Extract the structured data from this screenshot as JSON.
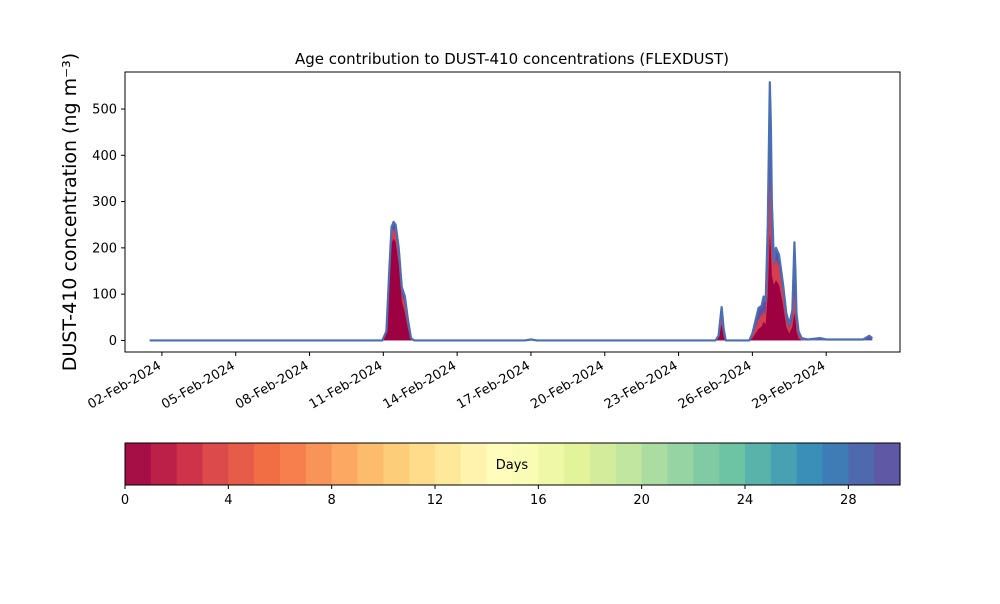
{
  "chart_data": {
    "type": "area",
    "title": "Age contribution to DUST-410 concentrations (FLEXDUST)",
    "ylabel": "DUST-410 concentration (ng m⁻³)",
    "xlabel": "",
    "ylim": [
      -25,
      580
    ],
    "xlim": [
      "2024-01-31T12:00",
      "2024-03-03T00:00"
    ],
    "yticks": [
      0,
      100,
      200,
      300,
      400,
      500
    ],
    "xtick_dates": [
      "2024-02-02",
      "2024-02-05",
      "2024-02-08",
      "2024-02-11",
      "2024-02-14",
      "2024-02-17",
      "2024-02-20",
      "2024-02-23",
      "2024-02-26",
      "2024-02-29"
    ],
    "xtick_labels": [
      "02-Feb-2024",
      "05-Feb-2024",
      "08-Feb-2024",
      "11-Feb-2024",
      "14-Feb-2024",
      "17-Feb-2024",
      "20-Feb-2024",
      "23-Feb-2024",
      "26-Feb-2024",
      "29-Feb-2024"
    ],
    "grid": false,
    "series": [
      {
        "color": "#5e4fa2",
        "points": [
          [
            "2024-02-01T12:00",
            0
          ],
          [
            "2024-02-10T23:00",
            0
          ],
          [
            "2024-02-11T03:00",
            20
          ],
          [
            "2024-02-11T06:00",
            160
          ],
          [
            "2024-02-11T08:00",
            245
          ],
          [
            "2024-02-11T10:00",
            256
          ],
          [
            "2024-02-11T12:00",
            250
          ],
          [
            "2024-02-11T15:00",
            200
          ],
          [
            "2024-02-11T18:00",
            115
          ],
          [
            "2024-02-11T21:00",
            95
          ],
          [
            "2024-02-12T00:00",
            45
          ],
          [
            "2024-02-12T03:00",
            5
          ],
          [
            "2024-02-12T06:00",
            0
          ],
          [
            "2024-02-16T18:00",
            0
          ],
          [
            "2024-02-17T00:00",
            2
          ],
          [
            "2024-02-17T06:00",
            0
          ],
          [
            "2024-02-24T12:00",
            0
          ],
          [
            "2024-02-24T15:00",
            10
          ],
          [
            "2024-02-24T18:00",
            72
          ],
          [
            "2024-02-24T20:00",
            25
          ],
          [
            "2024-02-24T22:00",
            0
          ],
          [
            "2024-02-25T21:00",
            0
          ],
          [
            "2024-02-26T00:00",
            15
          ],
          [
            "2024-02-26T06:00",
            70
          ],
          [
            "2024-02-26T09:00",
            75
          ],
          [
            "2024-02-26T11:00",
            95
          ],
          [
            "2024-02-26T13:00",
            85
          ],
          [
            "2024-02-26T15:00",
            250
          ],
          [
            "2024-02-26T17:00",
            558
          ],
          [
            "2024-02-26T18:00",
            470
          ],
          [
            "2024-02-26T19:00",
            300
          ],
          [
            "2024-02-26T21:00",
            170
          ],
          [
            "2024-02-26T23:00",
            200
          ],
          [
            "2024-02-27T02:00",
            185
          ],
          [
            "2024-02-27T06:00",
            120
          ],
          [
            "2024-02-27T09:00",
            60
          ],
          [
            "2024-02-27T12:00",
            35
          ],
          [
            "2024-02-27T15:00",
            65
          ],
          [
            "2024-02-27T17:00",
            212
          ],
          [
            "2024-02-27T18:00",
            150
          ],
          [
            "2024-02-27T19:00",
            60
          ],
          [
            "2024-02-27T21:00",
            20
          ],
          [
            "2024-02-28T00:00",
            5
          ],
          [
            "2024-02-28T06:00",
            2
          ],
          [
            "2024-02-28T18:00",
            5
          ],
          [
            "2024-02-29T00:00",
            2
          ],
          [
            "2024-03-01T12:00",
            2
          ],
          [
            "2024-03-01T18:00",
            10
          ],
          [
            "2024-03-01T21:00",
            5
          ]
        ]
      },
      {
        "color": "#d53e4f",
        "points": [
          [
            "2024-02-01T12:00",
            0
          ],
          [
            "2024-02-10T23:00",
            0
          ],
          [
            "2024-02-11T03:00",
            18
          ],
          [
            "2024-02-11T06:00",
            150
          ],
          [
            "2024-02-11T08:00",
            232
          ],
          [
            "2024-02-11T10:00",
            240
          ],
          [
            "2024-02-11T12:00",
            235
          ],
          [
            "2024-02-11T15:00",
            185
          ],
          [
            "2024-02-11T18:00",
            100
          ],
          [
            "2024-02-11T21:00",
            80
          ],
          [
            "2024-02-12T00:00",
            35
          ],
          [
            "2024-02-12T03:00",
            3
          ],
          [
            "2024-02-12T06:00",
            0
          ],
          [
            "2024-02-24T12:00",
            0
          ],
          [
            "2024-02-24T15:00",
            8
          ],
          [
            "2024-02-24T18:00",
            55
          ],
          [
            "2024-02-24T20:00",
            15
          ],
          [
            "2024-02-24T22:00",
            0
          ],
          [
            "2024-02-25T21:00",
            0
          ],
          [
            "2024-02-26T00:00",
            10
          ],
          [
            "2024-02-26T06:00",
            45
          ],
          [
            "2024-02-26T09:00",
            55
          ],
          [
            "2024-02-26T11:00",
            60
          ],
          [
            "2024-02-26T13:00",
            60
          ],
          [
            "2024-02-26T15:00",
            150
          ],
          [
            "2024-02-26T17:00",
            350
          ],
          [
            "2024-02-26T18:00",
            300
          ],
          [
            "2024-02-26T19:00",
            200
          ],
          [
            "2024-02-26T21:00",
            160
          ],
          [
            "2024-02-26T23:00",
            175
          ],
          [
            "2024-02-27T02:00",
            160
          ],
          [
            "2024-02-27T06:00",
            100
          ],
          [
            "2024-02-27T09:00",
            45
          ],
          [
            "2024-02-27T12:00",
            25
          ],
          [
            "2024-02-27T15:00",
            45
          ],
          [
            "2024-02-27T17:00",
            100
          ],
          [
            "2024-02-27T18:00",
            80
          ],
          [
            "2024-02-27T19:00",
            40
          ],
          [
            "2024-02-27T21:00",
            10
          ],
          [
            "2024-02-28T00:00",
            2
          ],
          [
            "2024-02-28T06:00",
            0
          ],
          [
            "2024-03-01T21:00",
            0
          ]
        ]
      },
      {
        "color": "#9e0142",
        "points": [
          [
            "2024-02-01T12:00",
            0
          ],
          [
            "2024-02-10T23:00",
            0
          ],
          [
            "2024-02-11T03:00",
            15
          ],
          [
            "2024-02-11T06:00",
            130
          ],
          [
            "2024-02-11T08:00",
            210
          ],
          [
            "2024-02-11T10:00",
            220
          ],
          [
            "2024-02-11T12:00",
            212
          ],
          [
            "2024-02-11T15:00",
            165
          ],
          [
            "2024-02-11T18:00",
            85
          ],
          [
            "2024-02-11T21:00",
            60
          ],
          [
            "2024-02-12T00:00",
            25
          ],
          [
            "2024-02-12T03:00",
            2
          ],
          [
            "2024-02-12T06:00",
            0
          ],
          [
            "2024-02-24T12:00",
            0
          ],
          [
            "2024-02-24T15:00",
            5
          ],
          [
            "2024-02-24T18:00",
            35
          ],
          [
            "2024-02-24T20:00",
            8
          ],
          [
            "2024-02-24T22:00",
            0
          ],
          [
            "2024-02-25T21:00",
            0
          ],
          [
            "2024-02-26T00:00",
            5
          ],
          [
            "2024-02-26T06:00",
            25
          ],
          [
            "2024-02-26T09:00",
            30
          ],
          [
            "2024-02-26T11:00",
            40
          ],
          [
            "2024-02-26T13:00",
            35
          ],
          [
            "2024-02-26T15:00",
            100
          ],
          [
            "2024-02-26T17:00",
            230
          ],
          [
            "2024-02-26T18:00",
            200
          ],
          [
            "2024-02-26T19:00",
            140
          ],
          [
            "2024-02-26T21:00",
            120
          ],
          [
            "2024-02-26T23:00",
            130
          ],
          [
            "2024-02-27T02:00",
            120
          ],
          [
            "2024-02-27T06:00",
            75
          ],
          [
            "2024-02-27T09:00",
            30
          ],
          [
            "2024-02-27T12:00",
            15
          ],
          [
            "2024-02-27T15:00",
            30
          ],
          [
            "2024-02-27T17:00",
            60
          ],
          [
            "2024-02-27T18:00",
            45
          ],
          [
            "2024-02-27T19:00",
            20
          ],
          [
            "2024-02-27T21:00",
            5
          ],
          [
            "2024-02-28T00:00",
            0
          ],
          [
            "2024-03-01T21:00",
            0
          ]
        ]
      }
    ],
    "colorbar": {
      "label": "Days",
      "min": 0,
      "max": 30,
      "ticks": [
        0,
        4,
        8,
        12,
        16,
        20,
        24,
        28
      ],
      "colors": [
        "#a50f45",
        "#bc2049",
        "#cf3349",
        "#dc4a4c",
        "#e75b49",
        "#f16d44",
        "#f67f4d",
        "#f99458",
        "#fca862",
        "#fdbc6c",
        "#fdcd7a",
        "#fedc89",
        "#fee89a",
        "#fff3ad",
        "#fffcbc",
        "#f9fcb5",
        "#eff8a6",
        "#e3f399",
        "#d3ec9b",
        "#c1e69f",
        "#abdda2",
        "#96d4a4",
        "#80cba4",
        "#6cc4a5",
        "#59b3aa",
        "#47a1b2",
        "#3a8fb8",
        "#3f7cb6",
        "#4e69ad",
        "#5e58a5"
      ]
    }
  }
}
